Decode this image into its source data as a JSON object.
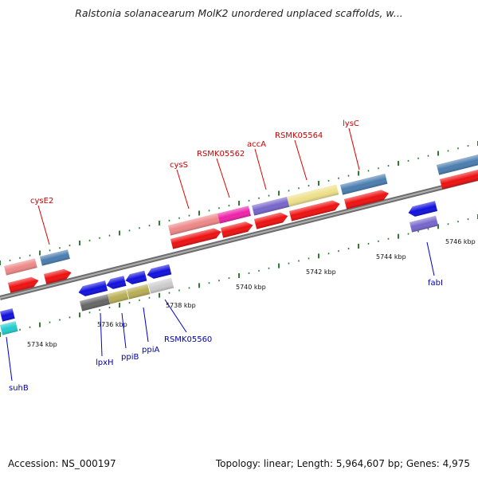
{
  "title": "Ralstonia solanacearum MolK2 unordered unplaced scaffolds, w...",
  "footer": {
    "accession": "Accession: NS_000197",
    "summary": "Topology: linear; Length: 5,964,607 bp; Genes: 4,975"
  },
  "colors": {
    "backbone": "#888888",
    "tick": "#2e7d32",
    "forward_gene_label": "#cc0000",
    "reverse_gene_label": "#0000aa",
    "cds_red": "#ee1111",
    "cds_blue": "#1111dd"
  },
  "scale_labels": [
    "5734 kbp",
    "5736 kbp",
    "5738 kbp",
    "5740 kbp",
    "5742 kbp",
    "5744 kbp",
    "5746 kbp"
  ],
  "forward_genes": [
    "cysE2",
    "cysS",
    "RSMK05562",
    "accA",
    "RSMK05564",
    "lysC"
  ],
  "reverse_genes": [
    "suhB",
    "lpxH",
    "ppiB",
    "ppiA",
    "RSMK05560",
    "fabI"
  ]
}
